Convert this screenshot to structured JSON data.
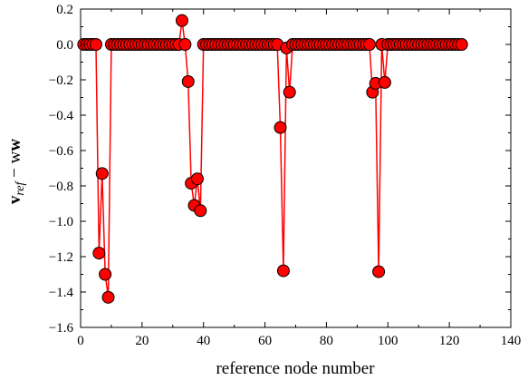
{
  "chart_data": {
    "type": "scatter",
    "xlabel": "reference node number",
    "ylabel_main": "v",
    "ylabel_sub": "ref",
    "ylabel_rest": " − w",
    "xlim": [
      0,
      140
    ],
    "ylim": [
      -1.6,
      0.2
    ],
    "xticks": [
      0,
      20,
      40,
      60,
      80,
      100,
      120,
      140
    ],
    "yticks": [
      0.2,
      0.0,
      -0.2,
      -0.4,
      -0.6,
      -0.8,
      -1.0,
      -1.2,
      -1.4,
      -1.6
    ],
    "xtick_labels": [
      "0",
      "20",
      "40",
      "60",
      "80",
      "100",
      "120",
      "140"
    ],
    "ytick_labels": [
      "0.2",
      "0.0",
      "−0.2",
      "−0.4",
      "−0.6",
      "−0.8",
      "−1.0",
      "−1.2",
      "−1.4",
      "−1.6"
    ],
    "grid": false,
    "line_color": "#ff0000",
    "marker_color": "#ff0000",
    "marker_edge_color": "#000000",
    "series": [
      {
        "x": [
          1,
          2,
          3,
          4,
          5,
          6,
          7,
          8,
          9,
          10,
          11,
          12,
          13,
          14,
          15,
          16,
          17,
          18,
          19,
          20,
          21,
          22,
          23,
          24,
          25,
          26,
          27,
          28,
          29,
          30,
          31,
          32,
          33,
          34,
          35,
          36,
          37,
          38,
          39,
          40,
          41,
          42,
          43,
          44,
          45,
          46,
          47,
          48,
          49,
          50,
          51,
          52,
          53,
          54,
          55,
          56,
          57,
          58,
          59,
          60,
          61,
          62,
          63,
          64,
          65,
          66,
          67,
          68,
          69,
          70,
          71,
          72,
          73,
          74,
          75,
          76,
          77,
          78,
          79,
          80,
          81,
          82,
          83,
          84,
          85,
          86,
          87,
          88,
          89,
          90,
          91,
          92,
          93,
          94,
          95,
          96,
          97,
          98,
          99,
          100,
          101,
          102,
          103,
          104,
          105,
          106,
          107,
          108,
          109,
          110,
          111,
          112,
          113,
          114,
          115,
          116,
          117,
          118,
          119,
          120,
          121,
          122,
          123,
          124
        ],
        "y": [
          0,
          0,
          0,
          0,
          0,
          -1.18,
          -0.73,
          -1.3,
          -1.43,
          0,
          0,
          0,
          0,
          0,
          0,
          0,
          0,
          0,
          0,
          0,
          0,
          0,
          0,
          0,
          0,
          0,
          0,
          0,
          0,
          0,
          0,
          0,
          0.135,
          0,
          -0.21,
          -0.785,
          -0.91,
          -0.76,
          -0.94,
          0,
          0,
          0,
          0,
          0,
          0,
          0,
          0,
          0,
          0,
          0,
          0,
          0,
          0,
          0,
          0,
          0,
          0,
          0,
          0,
          0,
          0,
          0,
          0,
          0,
          -0.47,
          -1.28,
          -0.02,
          -0.27,
          0,
          0,
          0,
          0,
          0,
          0,
          0,
          0,
          0,
          0,
          0,
          0,
          0,
          0,
          0,
          0,
          0,
          0,
          0,
          0,
          0,
          0,
          0,
          0,
          0,
          0,
          -0.27,
          -0.22,
          -1.285,
          0,
          -0.215,
          0,
          0,
          0,
          0,
          0,
          0,
          0,
          0,
          0,
          0,
          0,
          0,
          0,
          0,
          0,
          0,
          0,
          0,
          0,
          0,
          0,
          0,
          0,
          0,
          0
        ]
      }
    ]
  }
}
